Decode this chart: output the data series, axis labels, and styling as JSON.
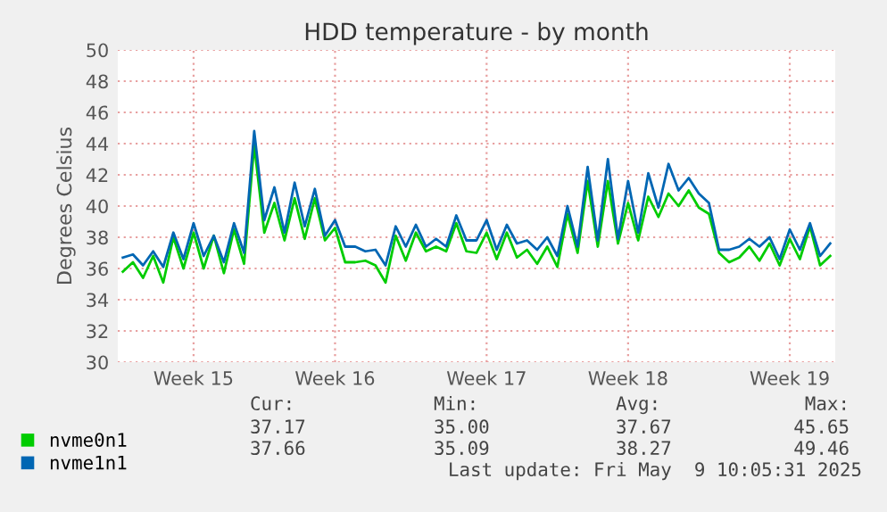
{
  "chart_data": {
    "type": "line",
    "title": "HDD temperature - by month",
    "ylabel": "Degrees Celsius",
    "categories": [
      null,
      null,
      null,
      null,
      null,
      null,
      null,
      "Week 15",
      null,
      null,
      null,
      null,
      null,
      null,
      null,
      null,
      null,
      null,
      null,
      null,
      null,
      "Week 16",
      null,
      null,
      null,
      null,
      null,
      null,
      null,
      null,
      null,
      null,
      null,
      null,
      null,
      null,
      "Week 17",
      null,
      null,
      null,
      null,
      null,
      null,
      null,
      null,
      null,
      null,
      null,
      null,
      null,
      "Week 18",
      null,
      null,
      null,
      null,
      null,
      null,
      null,
      null,
      null,
      null,
      null,
      null,
      null,
      null,
      null,
      "Week 19",
      null,
      null,
      null,
      null
    ],
    "series": [
      {
        "name": "nvme0n1",
        "color": "#00cc00",
        "values": [
          35.8,
          36.4,
          35.4,
          36.8,
          35.1,
          38.0,
          36.0,
          38.3,
          36.0,
          38.1,
          35.7,
          38.5,
          36.3,
          43.9,
          38.3,
          40.2,
          37.8,
          40.5,
          37.9,
          40.5,
          37.8,
          38.6,
          36.4,
          36.4,
          36.5,
          36.2,
          35.1,
          38.1,
          36.5,
          38.3,
          37.1,
          37.4,
          37.1,
          38.9,
          37.1,
          37.0,
          38.3,
          36.6,
          38.3,
          36.7,
          37.2,
          36.3,
          37.4,
          36.1,
          39.5,
          37.0,
          41.6,
          37.4,
          41.6,
          37.6,
          40.2,
          37.8,
          40.6,
          39.3,
          40.8,
          40.0,
          41.0,
          39.9,
          39.5,
          37.0,
          36.4,
          36.7,
          37.4,
          36.5,
          37.6,
          36.2,
          37.9,
          36.6,
          38.7,
          36.2,
          36.8
        ]
      },
      {
        "name": "nvme1n1",
        "color": "#0066b3",
        "values": [
          36.7,
          36.9,
          36.2,
          37.1,
          36.1,
          38.3,
          36.6,
          38.9,
          36.8,
          38.1,
          36.4,
          38.9,
          37.0,
          44.8,
          39.1,
          41.2,
          38.3,
          41.5,
          38.7,
          41.1,
          38.1,
          39.1,
          37.4,
          37.4,
          37.1,
          37.2,
          36.2,
          38.7,
          37.4,
          38.8,
          37.4,
          37.9,
          37.4,
          39.4,
          37.8,
          37.8,
          39.1,
          37.2,
          38.8,
          37.6,
          37.8,
          37.2,
          38.0,
          36.8,
          40.0,
          37.4,
          42.5,
          37.8,
          43.0,
          37.9,
          41.6,
          38.3,
          42.1,
          39.9,
          42.7,
          41.0,
          41.8,
          40.8,
          40.2,
          37.2,
          37.2,
          37.4,
          37.9,
          37.4,
          38.0,
          36.6,
          38.5,
          37.2,
          38.9,
          36.8,
          37.6
        ]
      }
    ],
    "ylim": [
      30,
      50
    ],
    "yticks": [
      30,
      32,
      34,
      36,
      38,
      40,
      42,
      44,
      46,
      48,
      50
    ],
    "grid": true,
    "legend": "bottom left",
    "line_style": "solid",
    "marker": "none",
    "annotations": [
      "Cur:",
      "Min:",
      "Avg:",
      "Max:",
      "37.17",
      "35.00",
      "37.67",
      "45.65",
      "37.66",
      "35.09",
      "38.27",
      "49.46",
      "Last update: Fri May  9 10:05:31 2025"
    ]
  }
}
